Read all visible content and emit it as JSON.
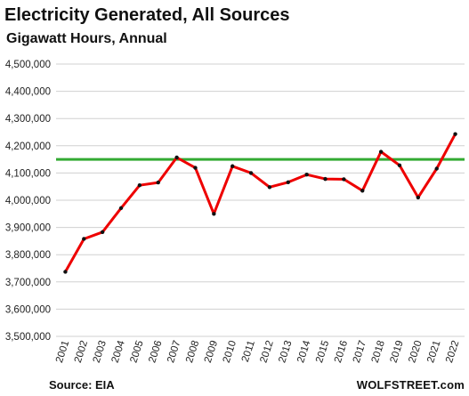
{
  "chart_data": {
    "type": "line",
    "title": "Electricity Generated,  All Sources",
    "subtitle": "Gigawatt Hours, Annual",
    "ylim": [
      3500000,
      4500000
    ],
    "yticks": [
      3500000,
      3600000,
      3700000,
      3800000,
      3900000,
      4000000,
      4100000,
      4200000,
      4300000,
      4400000,
      4500000
    ],
    "ytick_labels": [
      "3,500,000",
      "3,600,000",
      "3,700,000",
      "3,800,000",
      "3,900,000",
      "4,000,000",
      "4,100,000",
      "4,200,000",
      "4,300,000",
      "4,400,000",
      "4,500,000"
    ],
    "x": [
      "2001",
      "2002",
      "2003",
      "2004",
      "2005",
      "2006",
      "2007",
      "2008",
      "2009",
      "2010",
      "2011",
      "2012",
      "2013",
      "2014",
      "2015",
      "2016",
      "2017",
      "2018",
      "2019",
      "2020",
      "2021",
      "2022"
    ],
    "series": [
      {
        "color": "#ee0000",
        "values": [
          3737000,
          3858000,
          3883000,
          3971000,
          4055000,
          4065000,
          4157000,
          4119000,
          3950000,
          4125000,
          4100000,
          4048000,
          4066000,
          4094000,
          4078000,
          4077000,
          4035000,
          4178000,
          4128000,
          4010000,
          4116000,
          4243000
        ]
      }
    ],
    "reference_line": {
      "value": 4150000,
      "color": "#33aa33"
    },
    "grid": "horizontal",
    "grid_color": "#d0d0d0",
    "marker_color": "#111111"
  },
  "footer": {
    "source": "Source: EIA",
    "brand": "WOLFSTREET.com"
  }
}
